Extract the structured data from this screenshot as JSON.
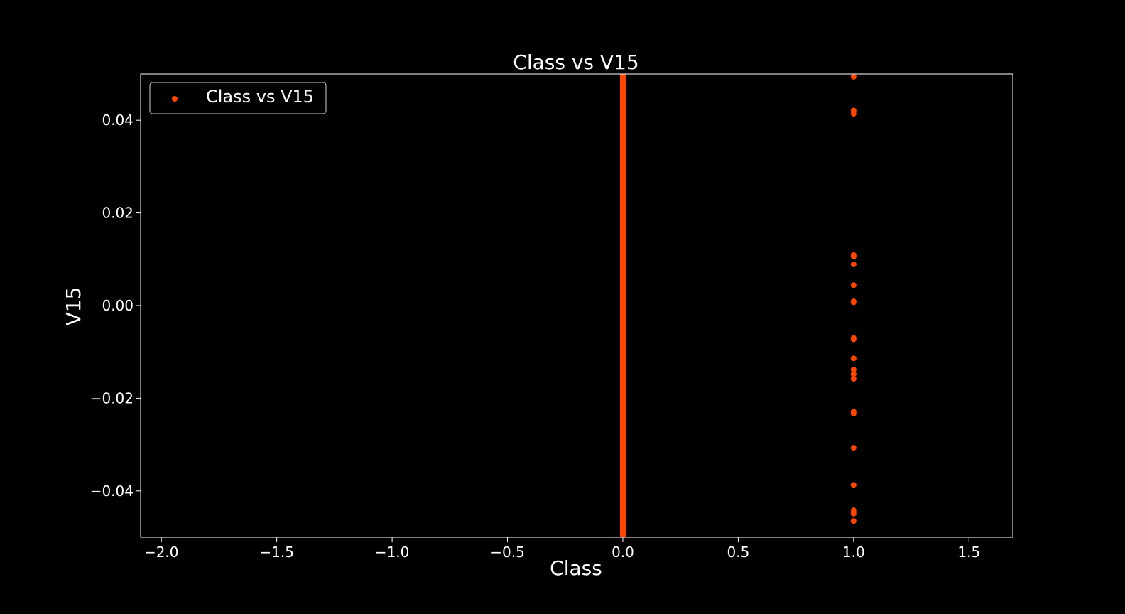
{
  "chart_data": {
    "type": "scatter",
    "title": "Class vs V15",
    "xlabel": "Class",
    "ylabel": "V15",
    "xlim": [
      -2.09,
      1.69
    ],
    "ylim": [
      -0.05,
      0.05
    ],
    "xticks": [
      -2.0,
      -1.5,
      -1.0,
      -0.5,
      0.0,
      0.5,
      1.0,
      1.5
    ],
    "xtick_labels": [
      "−2.0",
      "−1.5",
      "−1.0",
      "−0.5",
      "0.0",
      "0.5",
      "1.0",
      "1.5"
    ],
    "yticks": [
      -0.04,
      -0.02,
      0.0,
      0.02,
      0.04
    ],
    "ytick_labels": [
      "−0.04",
      "−0.02",
      "0.00",
      "0.02",
      "0.04"
    ],
    "grid": false,
    "legend_position": "top-left",
    "series": [
      {
        "name": "Class vs V15",
        "color": "#ff4500",
        "dense_column": {
          "x": 0,
          "y_range": [
            -0.05,
            0.05
          ]
        },
        "points": [
          {
            "x": 1,
            "y": 0.0494
          },
          {
            "x": 1,
            "y": 0.0421
          },
          {
            "x": 1,
            "y": 0.0414
          },
          {
            "x": 1,
            "y": 0.0109
          },
          {
            "x": 1,
            "y": 0.0106
          },
          {
            "x": 1,
            "y": 0.0089
          },
          {
            "x": 1,
            "y": 0.0044
          },
          {
            "x": 1,
            "y": 0.0009
          },
          {
            "x": 1,
            "y": 0.0007
          },
          {
            "x": 1,
            "y": -0.007
          },
          {
            "x": 1,
            "y": -0.0073
          },
          {
            "x": 1,
            "y": -0.0114
          },
          {
            "x": 1,
            "y": -0.0138
          },
          {
            "x": 1,
            "y": -0.0148
          },
          {
            "x": 1,
            "y": -0.0158
          },
          {
            "x": 1,
            "y": -0.0229
          },
          {
            "x": 1,
            "y": -0.0233
          },
          {
            "x": 1,
            "y": -0.0307
          },
          {
            "x": 1,
            "y": -0.0387
          },
          {
            "x": 1,
            "y": -0.0442
          },
          {
            "x": 1,
            "y": -0.0449
          },
          {
            "x": 1,
            "y": -0.0465
          }
        ]
      }
    ]
  }
}
